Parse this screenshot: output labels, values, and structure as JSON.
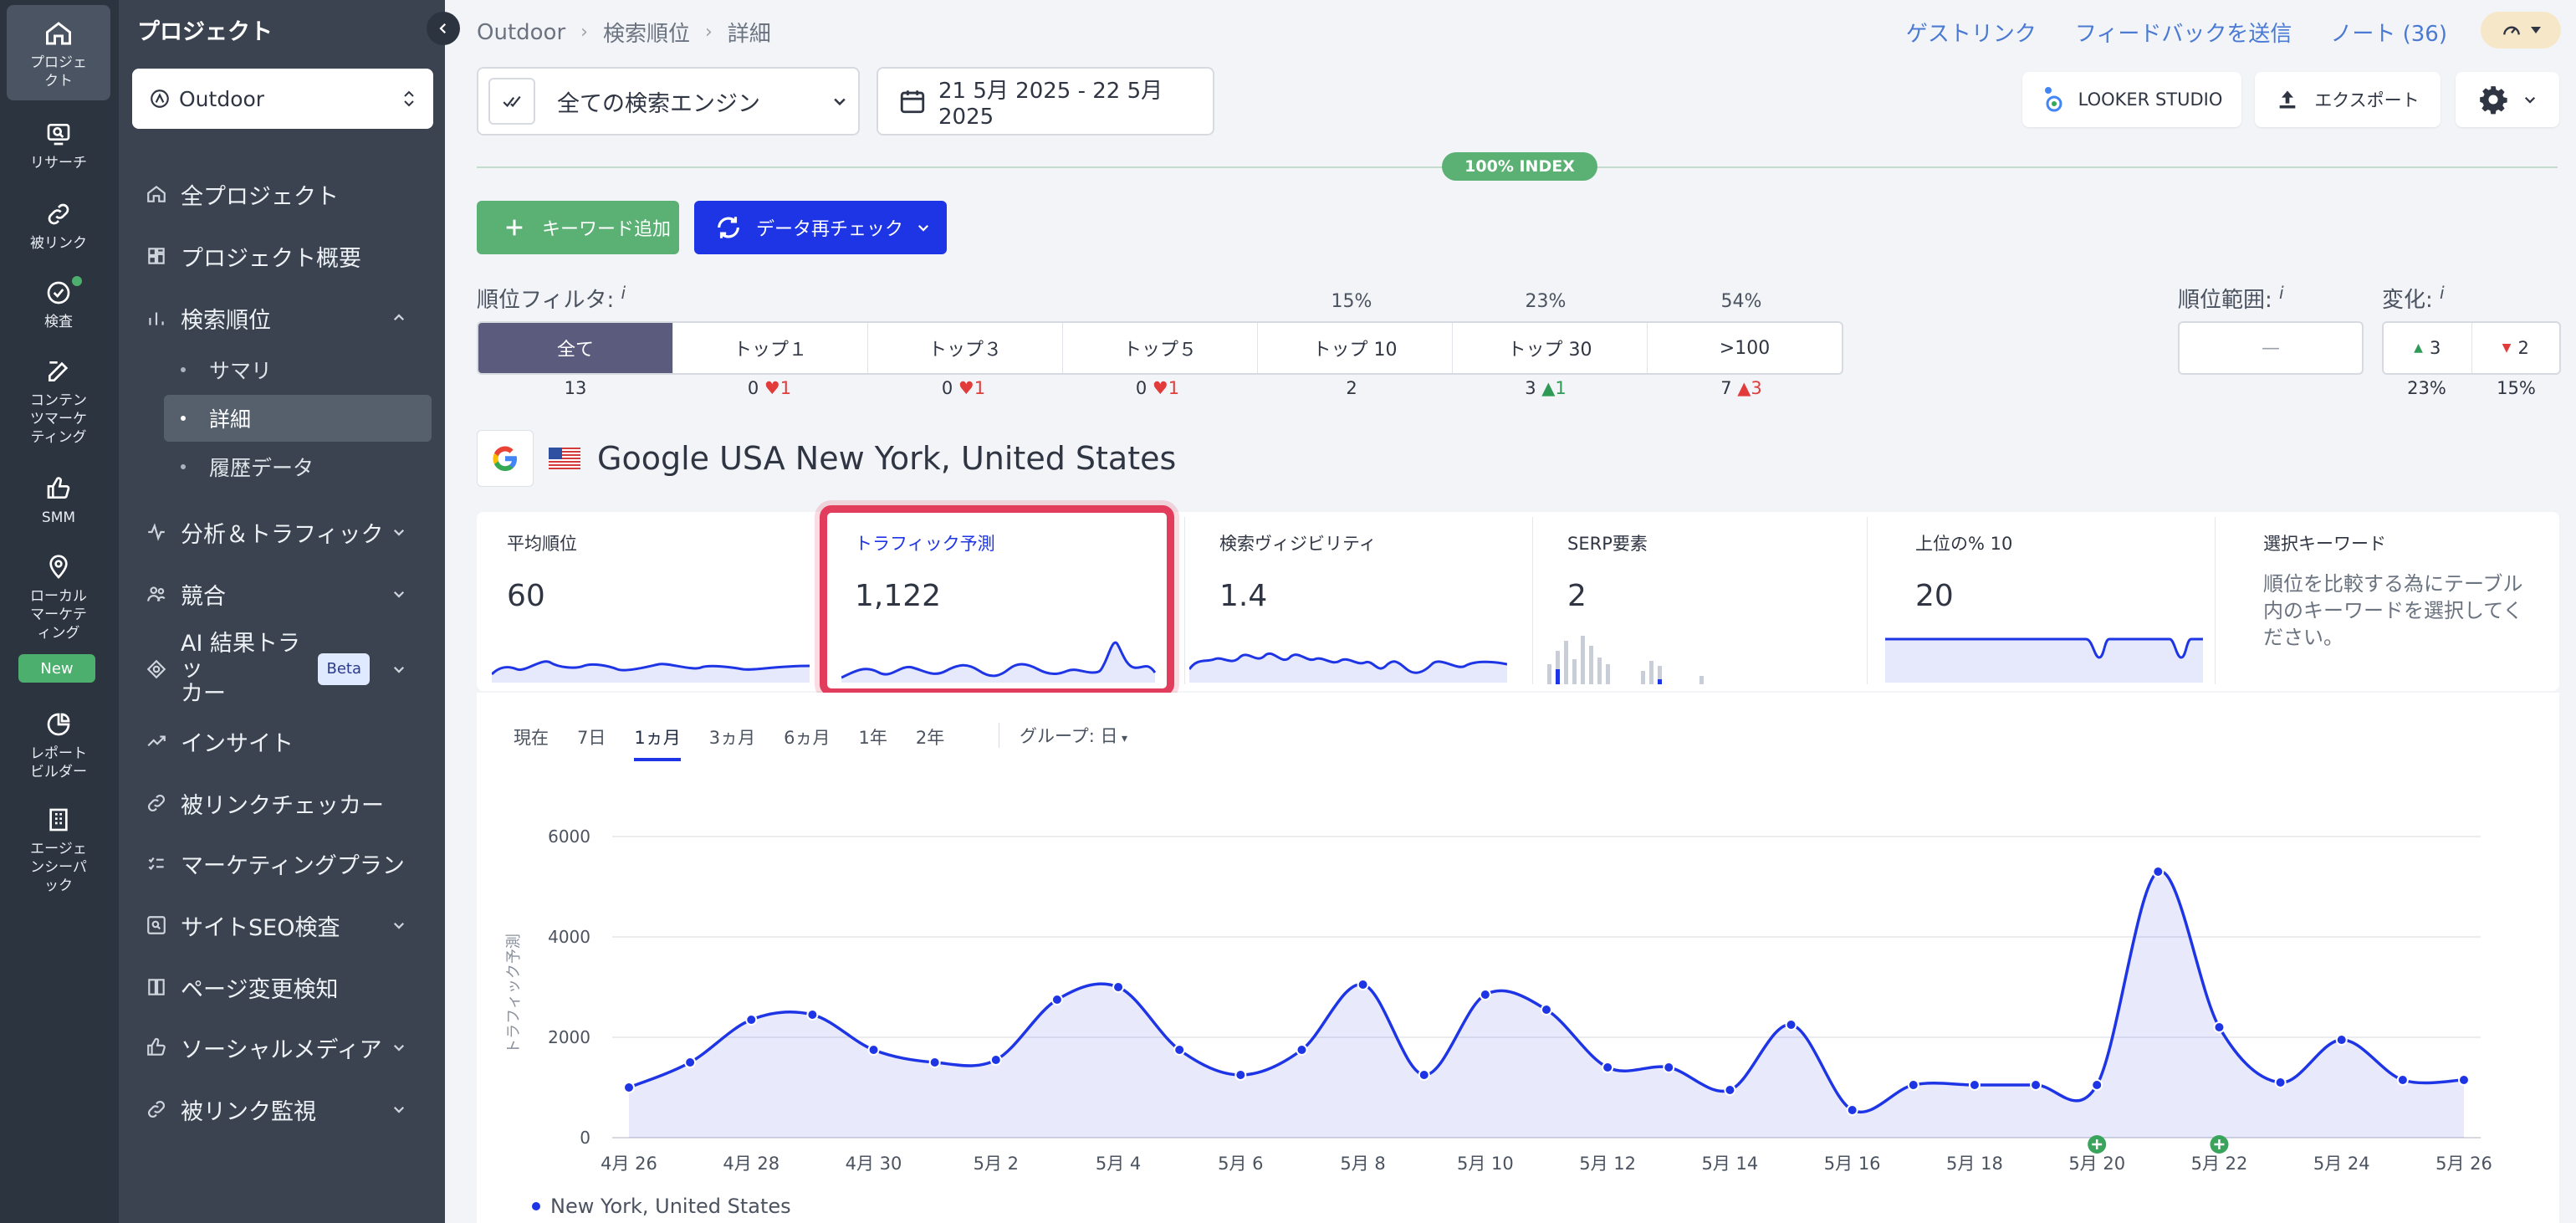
{
  "rail": {
    "items": [
      {
        "label": "プロジェ\nクト",
        "icon": "home-icon"
      },
      {
        "label": "リサーチ",
        "icon": "research-icon"
      },
      {
        "label": "被リンク",
        "icon": "link-icon"
      },
      {
        "label": "検査",
        "icon": "check-circle-icon"
      },
      {
        "label": "コンテン\nツマーケ\nティング",
        "icon": "edit-icon"
      },
      {
        "label": "SMM",
        "icon": "thumbs-up-icon"
      },
      {
        "label": "ローカル\nマーケテ\nィング",
        "icon": "map-pin-icon"
      },
      {
        "label": "レポート\nビルダー",
        "icon": "pie-chart-icon"
      },
      {
        "label": "エージェ\nンシーパ\nック",
        "icon": "building-icon"
      }
    ],
    "new_badge": "New"
  },
  "sidebar": {
    "title": "プロジェクト",
    "project": "Outdoor",
    "nav": [
      {
        "label": "全プロジェクト"
      },
      {
        "label": "プロジェクト概要"
      },
      {
        "label": "検索順位"
      },
      {
        "label": "分析＆トラフィック"
      },
      {
        "label": "競合"
      },
      {
        "label": "AI 結果トラッ\nカー",
        "badge": "Beta"
      },
      {
        "label": "インサイト"
      },
      {
        "label": "被リンクチェッカー"
      },
      {
        "label": "マーケティングプラン"
      },
      {
        "label": "サイトSEO検査"
      },
      {
        "label": "ページ変更検知"
      },
      {
        "label": "ソーシャルメディア"
      },
      {
        "label": "被リンク監視"
      }
    ],
    "sub": [
      "サマリ",
      "詳細",
      "履歴データ"
    ]
  },
  "header": {
    "breadcrumb": [
      "Outdoor",
      "検索順位",
      "詳細"
    ],
    "links": [
      "ゲストリンク",
      "フィードバックを送信",
      "ノート (36)"
    ],
    "engine": "全ての検索エンジン",
    "date_range": "21 5月 2025 - 22 5月 2025",
    "looker": "LOOKER STUDIO",
    "export": "エクスポート",
    "index_badge": "100% INDEX",
    "add_keyword": "キーワード追加",
    "recheck": "データ再チェック"
  },
  "filters": {
    "label": "順位フィルタ:",
    "info": "i",
    "segments": [
      {
        "label": "全て",
        "pct": "",
        "count": "13",
        "delta": "",
        "dir": ""
      },
      {
        "label": "トップ１",
        "pct": "",
        "count": "0",
        "delta": "1",
        "dir": "down"
      },
      {
        "label": "トップ３",
        "pct": "",
        "count": "0",
        "delta": "1",
        "dir": "down"
      },
      {
        "label": "トップ５",
        "pct": "",
        "count": "0",
        "delta": "1",
        "dir": "down"
      },
      {
        "label": "トップ 10",
        "pct": "15%",
        "count": "2",
        "delta": "",
        "dir": ""
      },
      {
        "label": "トップ 30",
        "pct": "23%",
        "count": "3",
        "delta": "1",
        "dir": "up"
      },
      {
        "label": ">100",
        "pct": "54%",
        "count": "7",
        "delta": "3",
        "dir": "up"
      }
    ],
    "range_label": "順位範囲:",
    "range_value": "—",
    "change_label": "変化:",
    "change_up": "3",
    "change_down": "2",
    "change_up_pct": "23%",
    "change_down_pct": "15%"
  },
  "location": {
    "title": "Google USA New York, United States"
  },
  "metrics": [
    {
      "title": "平均順位",
      "value": "60"
    },
    {
      "title": "トラフィック予測",
      "value": "1,122"
    },
    {
      "title": "検索ヴィジビリティ",
      "value": "1.4"
    },
    {
      "title": "SERP要素",
      "value": "2"
    },
    {
      "title": "上位の% 10",
      "value": "20"
    },
    {
      "title": "選択キーワード",
      "desc": "順位を比較する為にテーブル内のキーワードを選択してください。"
    }
  ],
  "chart_tabs": [
    "現在",
    "7日",
    "1ヵ月",
    "3ヵ月",
    "6ヵ月",
    "1年",
    "2年"
  ],
  "active_tab": "1ヵ月",
  "group_label": "グループ: 日",
  "chart_data": {
    "type": "area",
    "ylabel": "トラフィック予測",
    "ylim": [
      0,
      6000
    ],
    "yticks": [
      0,
      2000,
      4000,
      6000
    ],
    "x": [
      "4月 26",
      "4月 27",
      "4月 28",
      "4月 29",
      "4月 30",
      "5月 1",
      "5月 2",
      "5月 3",
      "5月 4",
      "5月 5",
      "5月 6",
      "5月 7",
      "5月 8",
      "5月 9",
      "5月 10",
      "5月 11",
      "5月 12",
      "5月 13",
      "5月 14",
      "5月 15",
      "5月 16",
      "5月 17",
      "5月 18",
      "5月 19",
      "5月 20",
      "5月 21",
      "5月 22",
      "5月 23",
      "5月 24",
      "5月 25",
      "5月 26"
    ],
    "xticks": [
      "4月 26",
      "4月 28",
      "4月 30",
      "5月 2",
      "5月 4",
      "5月 6",
      "5月 8",
      "5月 10",
      "5月 12",
      "5月 14",
      "5月 16",
      "5月 18",
      "5月 20",
      "5月 22",
      "5月 24",
      "5月 26"
    ],
    "series": [
      {
        "name": "New York, United States",
        "values": [
          1000,
          1500,
          2350,
          2450,
          1750,
          1500,
          1550,
          2750,
          3000,
          1750,
          1250,
          1750,
          3050,
          1250,
          2850,
          2550,
          1400,
          1400,
          950,
          2250,
          550,
          1050,
          1050,
          1050,
          1050,
          5300,
          2200,
          1100,
          1950,
          1150,
          1150
        ]
      }
    ],
    "markers": [
      "5月 20",
      "5月 22"
    ],
    "color": "#1e35e6"
  },
  "colors": {
    "accent": "#1e35e6",
    "green": "#5bb174",
    "highlight": "#e23d5c",
    "rail": "#2c3440",
    "sidebar": "#3a434f"
  }
}
